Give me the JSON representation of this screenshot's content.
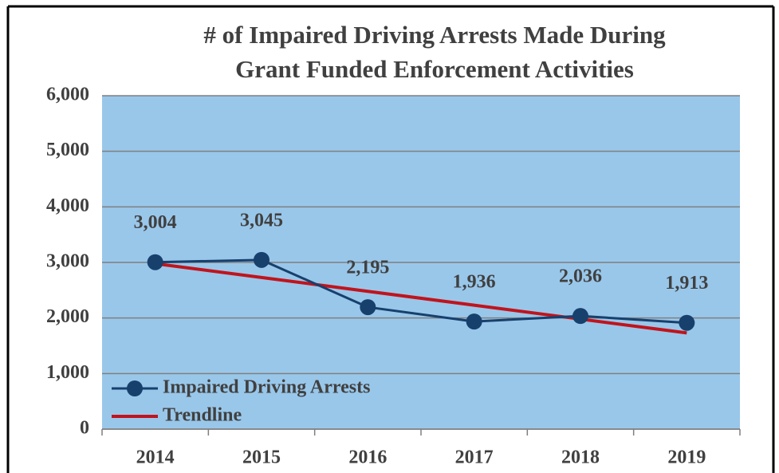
{
  "chart_data": {
    "type": "line",
    "title": [
      "# of Impaired  Driving Arrests  Made During",
      "Grant Funded Enforcement Activities"
    ],
    "categories": [
      "2014",
      "2015",
      "2016",
      "2017",
      "2018",
      "2019"
    ],
    "series": [
      {
        "name": "Impaired Driving Arrests",
        "color": "#17406d",
        "values": [
          3004,
          3045,
          2195,
          1936,
          2036,
          1913
        ],
        "value_labels": [
          "3,004",
          "3,045",
          "2,195",
          "1,936",
          "2,036",
          "1,913"
        ],
        "markers": true
      },
      {
        "name": "Trendline",
        "color": "#c0141c",
        "values": [
          2979,
          2729,
          2480,
          2230,
          1980,
          1731
        ],
        "markers": false
      }
    ],
    "ylim": [
      0,
      6000
    ],
    "yticks": [
      0,
      {
        "value": 1000,
        "label": "1,000"
      },
      {
        "value": 2000,
        "label": "2,000"
      },
      {
        "value": 3000,
        "label": "3,000"
      },
      {
        "value": 4000,
        "label": "4,000"
      },
      {
        "value": 5000,
        "label": "5,000"
      },
      {
        "value": 6000,
        "label": "6,000"
      }
    ],
    "grid": true,
    "background": "#99c7ea",
    "legend": "lower left"
  }
}
